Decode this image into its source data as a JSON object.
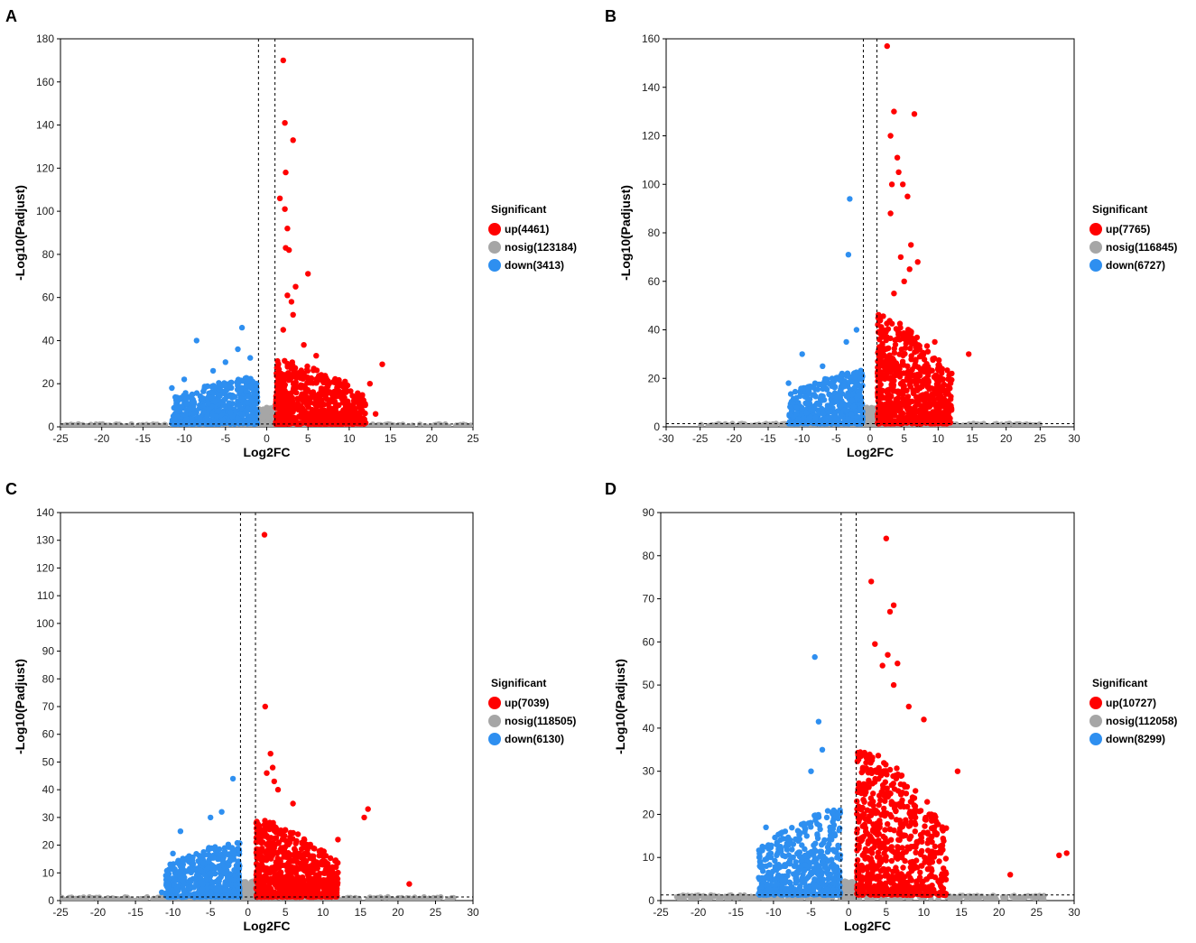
{
  "colors": {
    "up": "#ff0000",
    "nosig": "#a6a6a6",
    "down": "#2e8ff0"
  },
  "chart_data": [
    {
      "type": "scatter",
      "panel": "A",
      "xlabel": "Log2FC",
      "ylabel": "-Log10(Padjust)",
      "xlim": [
        -25,
        25
      ],
      "ylim": [
        0,
        180
      ],
      "xticks": [
        -25,
        -20,
        -15,
        -10,
        -5,
        0,
        5,
        10,
        15,
        20,
        25
      ],
      "yticks": [
        0,
        20,
        40,
        60,
        80,
        100,
        120,
        140,
        160,
        180
      ],
      "thresholds": {
        "log2fc": [
          -1,
          1
        ],
        "padj": 1.3
      },
      "legend": {
        "title": "Significant",
        "items": [
          {
            "key": "up",
            "label": "up(4461)"
          },
          {
            "key": "nosig",
            "label": "nosig(123184)"
          },
          {
            "key": "down",
            "label": "down(3413)"
          }
        ]
      },
      "cloud": {
        "up": {
          "xmax": 12,
          "ymax": 30
        },
        "down": {
          "xmin": -11.5,
          "ymax": 22
        },
        "nosig_x": [
          -25,
          25
        ]
      },
      "series": [
        {
          "name": "up",
          "x": [
            2.0,
            2.2,
            3.2,
            2.3,
            1.6,
            2.2,
            2.5,
            2.3,
            2.7,
            5.0,
            3.5,
            2.5,
            3.0,
            3.2,
            2.0,
            14.0,
            12.5,
            13.2,
            4.5,
            6.0,
            9.5,
            11.0
          ],
          "y": [
            170,
            141,
            133,
            118,
            106,
            101,
            92,
            83,
            82,
            71,
            65,
            61,
            58,
            52,
            45,
            29,
            20,
            6,
            38,
            33,
            21,
            2
          ]
        },
        {
          "name": "down",
          "x": [
            -3.0,
            -8.5,
            -3.5,
            -5.0,
            -11.5,
            -10.0,
            -9.0,
            -6.5,
            -2.0
          ],
          "y": [
            46,
            40,
            36,
            30,
            18,
            22,
            15,
            26,
            32
          ]
        }
      ]
    },
    {
      "type": "scatter",
      "panel": "B",
      "xlabel": "Log2FC",
      "ylabel": "-Log10(Padjust)",
      "xlim": [
        -30,
        30
      ],
      "ylim": [
        0,
        160
      ],
      "xticks": [
        -30,
        -25,
        -20,
        -15,
        -10,
        -5,
        0,
        5,
        10,
        15,
        20,
        25,
        30
      ],
      "yticks": [
        0,
        20,
        40,
        60,
        80,
        100,
        120,
        140,
        160
      ],
      "thresholds": {
        "log2fc": [
          -1,
          1
        ],
        "padj": 1.3
      },
      "legend": {
        "title": "Significant",
        "items": [
          {
            "key": "up",
            "label": "up(7765)"
          },
          {
            "key": "nosig",
            "label": "nosig(116845)"
          },
          {
            "key": "down",
            "label": "down(6727)"
          }
        ]
      },
      "cloud": {
        "up": {
          "xmax": 12,
          "ymax": 45
        },
        "down": {
          "xmin": -12,
          "ymax": 22
        },
        "nosig_x": [
          -25,
          25
        ]
      },
      "series": [
        {
          "name": "up",
          "x": [
            2.5,
            3.5,
            3.0,
            6.5,
            4.0,
            3.2,
            4.2,
            4.8,
            5.5,
            3.0,
            6.0,
            4.5,
            5.8,
            7.0,
            3.5,
            14.5,
            12.0,
            5.0,
            9.5
          ],
          "y": [
            157,
            130,
            120,
            129,
            111,
            100,
            105,
            100,
            95,
            88,
            75,
            70,
            65,
            68,
            55,
            30,
            22,
            60,
            35
          ]
        },
        {
          "name": "down",
          "x": [
            -3.0,
            -3.2,
            -10.0,
            -3.5,
            -12.0,
            -7.0,
            -2.0
          ],
          "y": [
            94,
            71,
            30,
            35,
            18,
            25,
            40
          ]
        }
      ]
    },
    {
      "type": "scatter",
      "panel": "C",
      "xlabel": "Log2FC",
      "ylabel": "-Log10(Padjust)",
      "xlim": [
        -25,
        30
      ],
      "ylim": [
        0,
        140
      ],
      "xticks": [
        -25,
        -20,
        -15,
        -10,
        -5,
        0,
        5,
        10,
        15,
        20,
        25,
        30
      ],
      "yticks": [
        0,
        10,
        20,
        30,
        40,
        50,
        60,
        70,
        80,
        90,
        100,
        110,
        120,
        130,
        140
      ],
      "thresholds": {
        "log2fc": [
          -1,
          1
        ],
        "padj": 1.3
      },
      "legend": {
        "title": "Significant",
        "items": [
          {
            "key": "up",
            "label": "up(7039)"
          },
          {
            "key": "nosig",
            "label": "nosig(118505)"
          },
          {
            "key": "down",
            "label": "down(6130)"
          }
        ]
      },
      "cloud": {
        "up": {
          "xmax": 12,
          "ymax": 28
        },
        "down": {
          "xmin": -11,
          "ymax": 20
        },
        "nosig_x": [
          -25,
          28
        ]
      },
      "series": [
        {
          "name": "up",
          "x": [
            2.2,
            2.3,
            3.0,
            3.3,
            2.5,
            3.5,
            4.0,
            16.0,
            15.5,
            21.5,
            12.0,
            6.0
          ],
          "y": [
            132,
            70,
            53,
            48,
            46,
            43,
            40,
            33,
            30,
            6,
            22,
            35
          ]
        },
        {
          "name": "down",
          "x": [
            -2.0,
            -3.5,
            -10.0,
            -9.0,
            -11.5,
            -5.0
          ],
          "y": [
            44,
            32,
            17,
            25,
            3,
            30
          ]
        }
      ]
    },
    {
      "type": "scatter",
      "panel": "D",
      "xlabel": "Log2FC",
      "ylabel": "-Log10(Padjust)",
      "xlim": [
        -25,
        30
      ],
      "ylim": [
        0,
        90
      ],
      "xticks": [
        -25,
        -20,
        -15,
        -10,
        -5,
        0,
        5,
        10,
        15,
        20,
        25,
        30
      ],
      "yticks": [
        0,
        10,
        20,
        30,
        40,
        50,
        60,
        70,
        80,
        90
      ],
      "thresholds": {
        "log2fc": [
          -1,
          1
        ],
        "padj": 1.3
      },
      "legend": {
        "title": "Significant",
        "items": [
          {
            "key": "up",
            "label": "up(10727)"
          },
          {
            "key": "nosig",
            "label": "nosig(112058)"
          },
          {
            "key": "down",
            "label": "down(8299)"
          }
        ]
      },
      "cloud": {
        "up": {
          "xmax": 13,
          "ymax": 35
        },
        "down": {
          "xmin": -12,
          "ymax": 20
        },
        "nosig_x": [
          -23,
          26
        ]
      },
      "series": [
        {
          "name": "up",
          "x": [
            5.0,
            3.0,
            6.0,
            5.5,
            3.5,
            5.2,
            4.5,
            6.5,
            6.0,
            10.0,
            14.5,
            29.0,
            28.0,
            21.5,
            8.0,
            11.0
          ],
          "y": [
            84,
            74,
            68.5,
            67,
            59.5,
            57,
            54.5,
            55,
            50,
            42,
            30,
            11,
            10.5,
            6,
            45,
            20
          ]
        },
        {
          "name": "down",
          "x": [
            -4.5,
            -4.0,
            -11.0,
            -3.5,
            -5.0,
            -9.0
          ],
          "y": [
            56.5,
            41.5,
            17,
            35,
            30,
            12
          ]
        }
      ]
    }
  ]
}
